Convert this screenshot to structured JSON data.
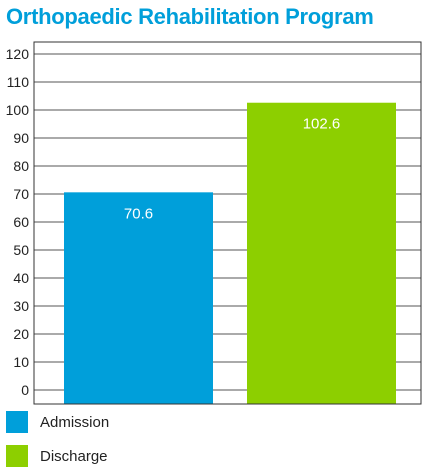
{
  "chart_data": {
    "type": "bar",
    "title": "Orthopaedic Rehabilitation Program",
    "categories": [
      "Admission",
      "Discharge"
    ],
    "values": [
      70.6,
      102.6
    ],
    "value_labels": [
      "70.6",
      "102.6"
    ],
    "colors": [
      "#009fda",
      "#8dcf00"
    ],
    "title_color": "#009fda",
    "ylim": [
      0,
      120
    ],
    "yticks": [
      "0",
      "10",
      "20",
      "30",
      "40",
      "50",
      "60",
      "70",
      "80",
      "90",
      "100",
      "110",
      "120"
    ],
    "grid": true,
    "legend_placement": "bottom-left",
    "xlabel": "",
    "ylabel": ""
  },
  "legend": {
    "items": [
      {
        "label": "Admission",
        "color": "#009fda"
      },
      {
        "label": "Discharge",
        "color": "#8dcf00"
      }
    ]
  }
}
